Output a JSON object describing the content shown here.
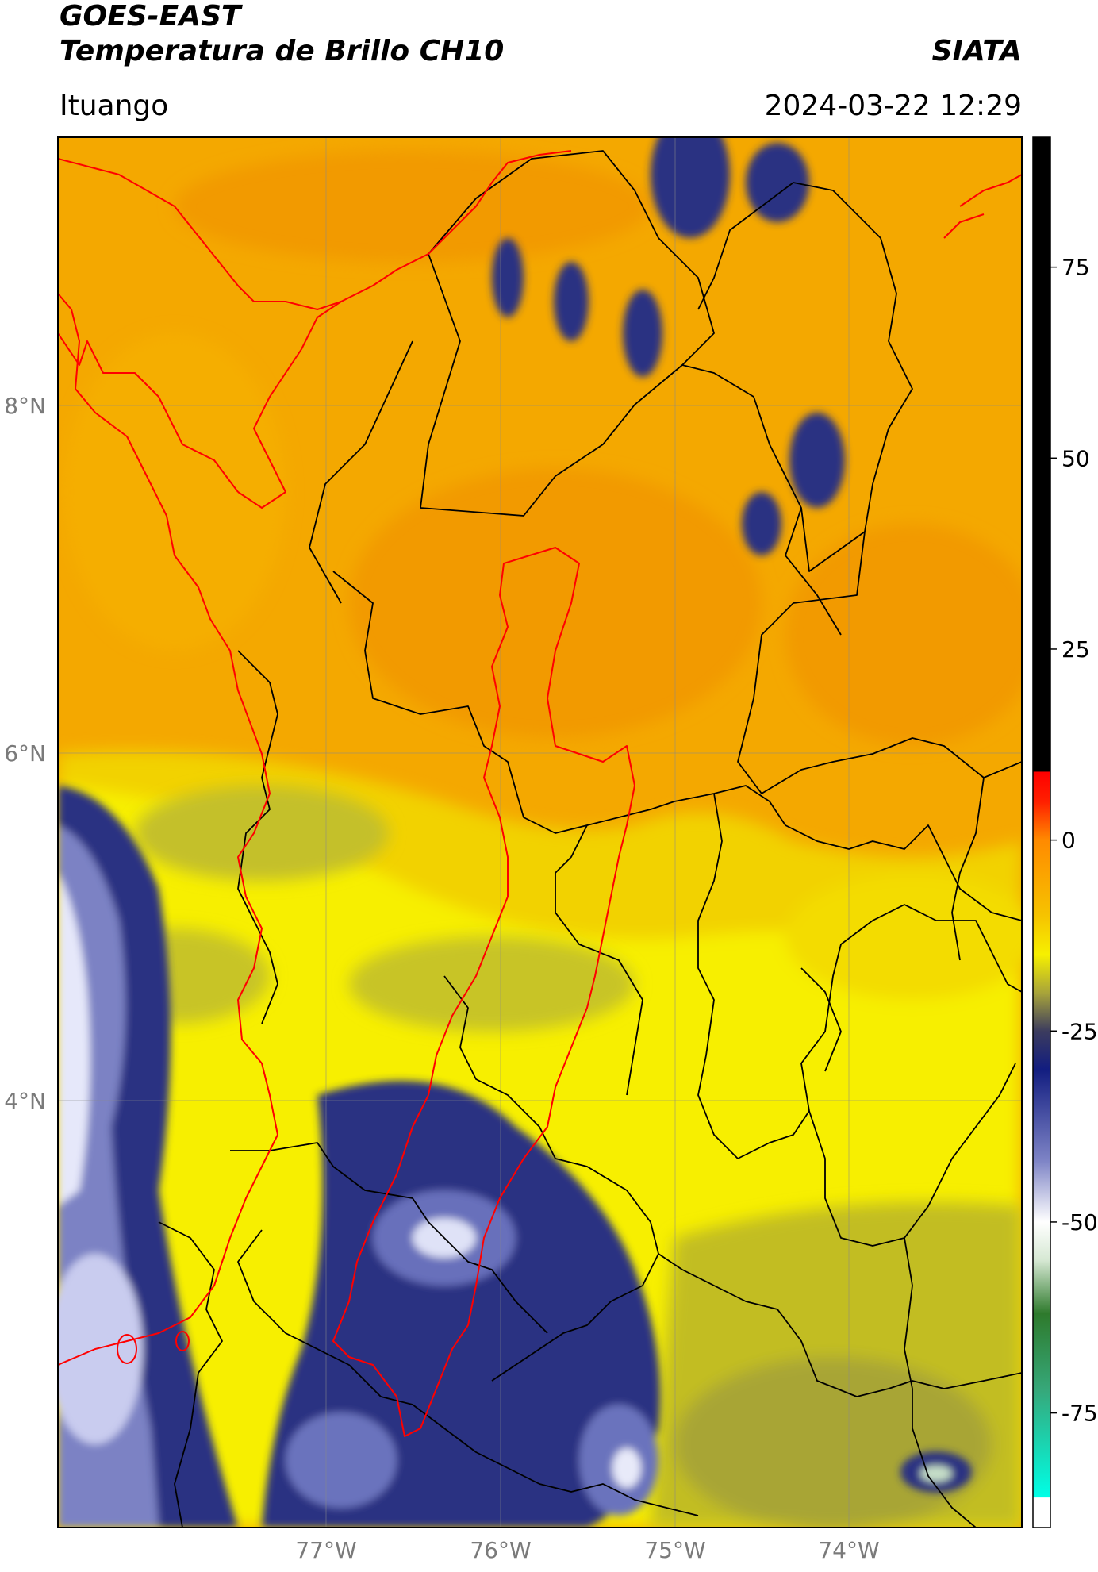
{
  "header": {
    "satellite": "GOES-EAST",
    "product": "Temperatura de Brillo CH10",
    "organization": "SIATA",
    "region": "Ituango",
    "timestamp": "2024-03-22 12:29"
  },
  "map": {
    "lat_labels": [
      "8°N",
      "6°N",
      "4°N"
    ],
    "lon_labels": [
      "77°W",
      "76°W",
      "75°W",
      "74°W"
    ],
    "lat_range": [
      1.6,
      9.5
    ],
    "lon_range": [
      -78.5,
      -73.0
    ],
    "colors": {
      "warm": "#f5a300",
      "yellow": "#f6f200",
      "olive": "#b8b429",
      "navy": "#1d2377",
      "white": "#eef0ff",
      "country_border": "#ff0000",
      "admin_border": "#000000"
    }
  },
  "colorbar": {
    "ticks": [
      "75",
      "50",
      "25",
      "0",
      "-25",
      "-50",
      "-75"
    ],
    "tick_values": [
      75,
      50,
      25,
      0,
      -25,
      -50,
      -75
    ],
    "range": [
      -90,
      92
    ],
    "stops": [
      {
        "value": 92,
        "color": "#000000"
      },
      {
        "value": 9,
        "color": "#000000"
      },
      {
        "value": 8.9,
        "color": "#ff0000"
      },
      {
        "value": 5,
        "color": "#ff2000"
      },
      {
        "value": 0,
        "color": "#ff8a00"
      },
      {
        "value": -10,
        "color": "#f6c400"
      },
      {
        "value": -15,
        "color": "#f6f000"
      },
      {
        "value": -20,
        "color": "#a8a43a"
      },
      {
        "value": -25,
        "color": "#3c3c5e"
      },
      {
        "value": -30,
        "color": "#121d80"
      },
      {
        "value": -42,
        "color": "#7e84c6"
      },
      {
        "value": -50,
        "color": "#ffffff"
      },
      {
        "value": -55,
        "color": "#d6e8d3"
      },
      {
        "value": -62,
        "color": "#2e7a2c"
      },
      {
        "value": -72,
        "color": "#36a87a"
      },
      {
        "value": -86,
        "color": "#00ffe6"
      },
      {
        "value": -86.1,
        "color": "#ffffff"
      },
      {
        "value": -90,
        "color": "#ffffff"
      }
    ]
  }
}
